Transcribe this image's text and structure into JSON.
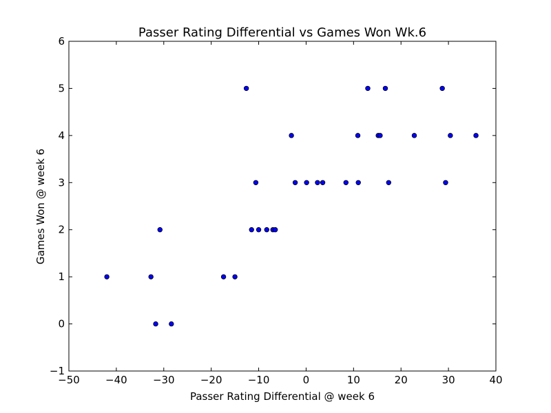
{
  "chart_data": {
    "type": "scatter",
    "title": "Passer Rating Differential vs Games Won Wk.6",
    "xlabel": "Passer Rating Differential @ week 6",
    "ylabel": "Games Won @ week 6",
    "xlim": [
      -50,
      40
    ],
    "ylim": [
      -1,
      6
    ],
    "xticks": [
      -50,
      -40,
      -30,
      -20,
      -10,
      0,
      10,
      20,
      30,
      40
    ],
    "yticks": [
      -1,
      0,
      1,
      2,
      3,
      4,
      5,
      6
    ],
    "xtick_labels": [
      "−50",
      "−40",
      "−30",
      "−20",
      "−10",
      "0",
      "10",
      "20",
      "30",
      "40"
    ],
    "ytick_labels": [
      "−1",
      "0",
      "1",
      "2",
      "3",
      "4",
      "5",
      "6"
    ],
    "grid": false,
    "marker_color": "#0000ff",
    "marker_edge": "#000000",
    "points": [
      {
        "x": -42.0,
        "y": 1
      },
      {
        "x": -32.7,
        "y": 1
      },
      {
        "x": -31.7,
        "y": 0
      },
      {
        "x": -30.8,
        "y": 2
      },
      {
        "x": -28.4,
        "y": 0
      },
      {
        "x": -17.4,
        "y": 1
      },
      {
        "x": -15.0,
        "y": 1
      },
      {
        "x": -12.6,
        "y": 5
      },
      {
        "x": -11.5,
        "y": 2
      },
      {
        "x": -10.6,
        "y": 3
      },
      {
        "x": -10.0,
        "y": 2
      },
      {
        "x": -8.3,
        "y": 2
      },
      {
        "x": -7.0,
        "y": 2
      },
      {
        "x": -6.5,
        "y": 2
      },
      {
        "x": -3.1,
        "y": 4
      },
      {
        "x": -2.3,
        "y": 3
      },
      {
        "x": 0.1,
        "y": 3
      },
      {
        "x": 2.4,
        "y": 3
      },
      {
        "x": 3.5,
        "y": 3
      },
      {
        "x": 8.4,
        "y": 3
      },
      {
        "x": 10.9,
        "y": 4
      },
      {
        "x": 11.0,
        "y": 3
      },
      {
        "x": 13.0,
        "y": 5
      },
      {
        "x": 15.2,
        "y": 4
      },
      {
        "x": 15.6,
        "y": 4
      },
      {
        "x": 16.7,
        "y": 5
      },
      {
        "x": 17.4,
        "y": 3
      },
      {
        "x": 22.8,
        "y": 4
      },
      {
        "x": 28.7,
        "y": 5
      },
      {
        "x": 29.4,
        "y": 3
      },
      {
        "x": 30.4,
        "y": 4
      },
      {
        "x": 35.8,
        "y": 4
      }
    ]
  }
}
